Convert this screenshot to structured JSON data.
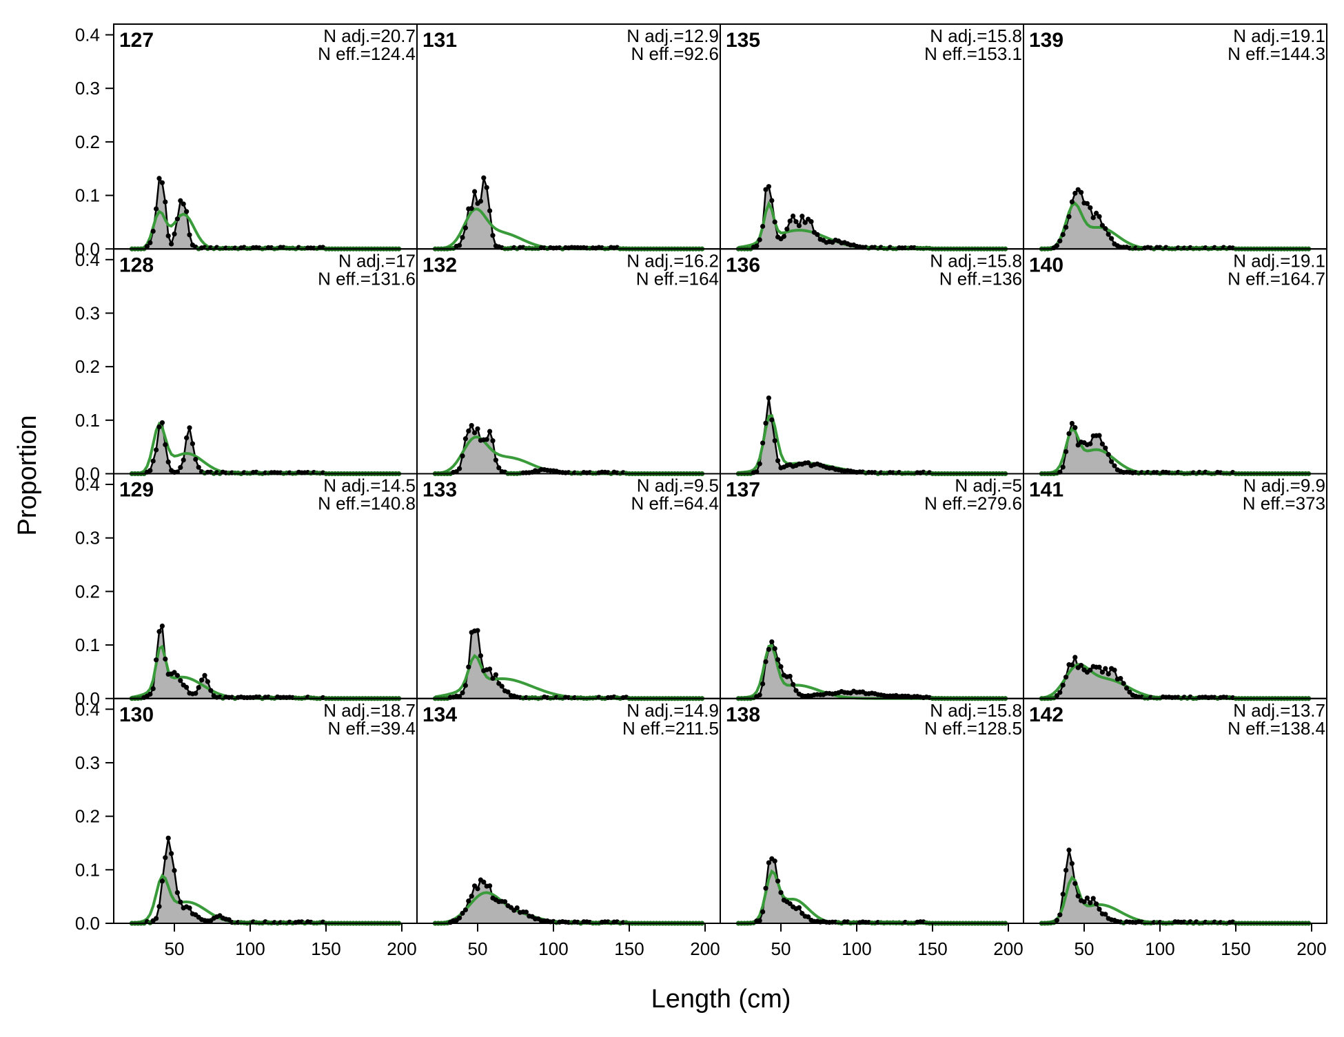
{
  "chart_data": {
    "type": "area",
    "xlabel": "Length (cm)",
    "ylabel": "Proportion",
    "xlim": [
      10,
      210
    ],
    "ylim": [
      0,
      0.42
    ],
    "x_ticks": [
      50,
      100,
      150,
      200
    ],
    "y_ticks": [
      0.0,
      0.1,
      0.2,
      0.3,
      0.4
    ],
    "x_tick_labels": [
      "50",
      "100",
      "150",
      "200"
    ],
    "y_tick_labels": [
      "0.0",
      "0.1",
      "0.2",
      "0.3",
      "0.4"
    ],
    "layout": {
      "rows": 4,
      "cols": 4,
      "order": "column-major"
    },
    "colors": {
      "observed_fill": "#b3b3b3",
      "observed_line": "#000000",
      "expected_line": "#3a9b3a",
      "zero_line": "#b0b0b0"
    },
    "series_roles": [
      "observed",
      "expected"
    ],
    "length_bins": [
      22,
      24,
      26,
      28,
      30,
      32,
      34,
      36,
      38,
      40,
      42,
      44,
      46,
      48,
      50,
      52,
      54,
      56,
      58,
      60,
      62,
      64,
      66,
      68,
      70,
      72,
      74,
      76,
      78,
      80,
      82,
      84,
      86,
      88,
      90,
      92,
      94,
      96,
      98,
      100,
      102,
      104,
      106,
      108,
      110,
      112,
      114,
      116,
      118,
      120,
      122,
      124,
      126,
      128,
      130,
      132,
      134,
      136,
      138,
      140,
      142,
      144,
      146,
      148,
      150,
      152,
      154,
      156,
      158,
      160,
      162,
      164,
      166,
      168,
      170,
      172,
      174,
      176,
      178,
      180,
      182,
      184,
      186,
      188,
      190,
      192,
      194,
      196,
      198
    ],
    "panels": [
      {
        "id": "127",
        "n_adj": "N adj.=20.7",
        "n_eff": "N eff.=124.4",
        "obs_peaks": [
          [
            40,
            0.078,
            3
          ],
          [
            42,
            0.087,
            2
          ],
          [
            55,
            0.098,
            3
          ]
        ],
        "exp_peaks": [
          [
            40,
            0.065,
            4
          ],
          [
            56,
            0.065,
            7
          ]
        ]
      },
      {
        "id": "128",
        "n_adj": "N adj.=17",
        "n_eff": "N eff.=131.6",
        "obs_peaks": [
          [
            41,
            0.087,
            3
          ],
          [
            60,
            0.075,
            3
          ]
        ],
        "exp_peaks": [
          [
            40,
            0.083,
            4
          ],
          [
            58,
            0.038,
            11
          ]
        ]
      },
      {
        "id": "129",
        "n_adj": "N adj.=14.5",
        "n_eff": "N eff.=140.8",
        "obs_peaks": [
          [
            41,
            0.138,
            2
          ],
          [
            48,
            0.05,
            7
          ],
          [
            70,
            0.038,
            3
          ]
        ],
        "exp_peaks": [
          [
            41,
            0.075,
            3
          ],
          [
            55,
            0.04,
            14
          ]
        ]
      },
      {
        "id": "130",
        "n_adj": "N adj.=18.7",
        "n_eff": "N eff.=39.4",
        "obs_peaks": [
          [
            46,
            0.163,
            3
          ],
          [
            55,
            0.03,
            8
          ],
          [
            80,
            0.012,
            4
          ]
        ],
        "exp_peaks": [
          [
            42,
            0.07,
            4
          ],
          [
            58,
            0.04,
            13
          ]
        ]
      },
      {
        "id": "131",
        "n_adj": "N adj.=12.9",
        "n_eff": "N eff.=92.6",
        "obs_peaks": [
          [
            47,
            0.09,
            4
          ],
          [
            55,
            0.1,
            3
          ]
        ],
        "exp_peaks": [
          [
            48,
            0.06,
            7
          ],
          [
            65,
            0.03,
            14
          ]
        ]
      },
      {
        "id": "132",
        "n_adj": "N adj.=16.2",
        "n_eff": "N eff.=164",
        "obs_peaks": [
          [
            44,
            0.07,
            3
          ],
          [
            50,
            0.065,
            3
          ],
          [
            58,
            0.07,
            3
          ],
          [
            95,
            0.008,
            5
          ]
        ],
        "exp_peaks": [
          [
            48,
            0.058,
            8
          ],
          [
            70,
            0.03,
            15
          ]
        ]
      },
      {
        "id": "133",
        "n_adj": "N adj.=9.5",
        "n_eff": "N eff.=64.4",
        "obs_peaks": [
          [
            48,
            0.11,
            3
          ],
          [
            56,
            0.05,
            8
          ]
        ],
        "exp_peaks": [
          [
            48,
            0.055,
            4
          ],
          [
            66,
            0.037,
            20
          ]
        ]
      },
      {
        "id": "134",
        "n_adj": "N adj.=14.9",
        "n_eff": "N eff.=211.5",
        "obs_peaks": [
          [
            52,
            0.065,
            7
          ],
          [
            70,
            0.03,
            12
          ]
        ],
        "exp_peaks": [
          [
            54,
            0.047,
            10
          ],
          [
            72,
            0.02,
            15
          ]
        ]
      },
      {
        "id": "135",
        "n_adj": "N adj.=15.8",
        "n_eff": "N eff.=153.1",
        "obs_peaks": [
          [
            42,
            0.12,
            3
          ],
          [
            58,
            0.05,
            5
          ],
          [
            68,
            0.045,
            4
          ],
          [
            85,
            0.015,
            10
          ]
        ],
        "exp_peaks": [
          [
            42,
            0.065,
            3
          ],
          [
            62,
            0.035,
            18
          ]
        ]
      },
      {
        "id": "136",
        "n_adj": "N adj.=15.8",
        "n_eff": "N eff.=136",
        "obs_peaks": [
          [
            42,
            0.135,
            3
          ],
          [
            60,
            0.015,
            10
          ],
          [
            78,
            0.012,
            10
          ]
        ],
        "exp_peaks": [
          [
            43,
            0.1,
            4
          ],
          [
            65,
            0.02,
            20
          ]
        ]
      },
      {
        "id": "137",
        "n_adj": "N adj.=5",
        "n_eff": "N eff.=279.6",
        "obs_peaks": [
          [
            43,
            0.11,
            3
          ],
          [
            52,
            0.05,
            5
          ],
          [
            95,
            0.012,
            20
          ]
        ],
        "exp_peaks": [
          [
            43,
            0.088,
            4
          ],
          [
            60,
            0.025,
            15
          ]
        ]
      },
      {
        "id": "138",
        "n_adj": "N adj.=15.8",
        "n_eff": "N eff.=128.5",
        "obs_peaks": [
          [
            44,
            0.125,
            3
          ],
          [
            55,
            0.04,
            8
          ]
        ],
        "exp_peaks": [
          [
            44,
            0.08,
            4
          ],
          [
            58,
            0.045,
            10
          ]
        ]
      },
      {
        "id": "139",
        "n_adj": "N adj.=19.1",
        "n_eff": "N eff.=144.3",
        "obs_peaks": [
          [
            44,
            0.095,
            5
          ],
          [
            57,
            0.06,
            7
          ]
        ],
        "exp_peaks": [
          [
            43,
            0.07,
            5
          ],
          [
            60,
            0.04,
            12
          ]
        ]
      },
      {
        "id": "140",
        "n_adj": "N adj.=19.1",
        "n_eff": "N eff.=164.7",
        "obs_peaks": [
          [
            42,
            0.09,
            3
          ],
          [
            52,
            0.055,
            5
          ],
          [
            62,
            0.05,
            5
          ]
        ],
        "exp_peaks": [
          [
            42,
            0.065,
            4
          ],
          [
            58,
            0.045,
            12
          ]
        ]
      },
      {
        "id": "141",
        "n_adj": "N adj.=9.9",
        "n_eff": "N eff.=373",
        "obs_peaks": [
          [
            42,
            0.06,
            4
          ],
          [
            55,
            0.055,
            8
          ],
          [
            70,
            0.04,
            6
          ]
        ],
        "exp_peaks": [
          [
            45,
            0.05,
            8
          ],
          [
            65,
            0.035,
            14
          ]
        ]
      },
      {
        "id": "142",
        "n_adj": "N adj.=13.7",
        "n_eff": "N eff.=138.4",
        "obs_peaks": [
          [
            40,
            0.105,
            3
          ],
          [
            52,
            0.045,
            8
          ]
        ],
        "exp_peaks": [
          [
            42,
            0.07,
            4
          ],
          [
            60,
            0.035,
            14
          ]
        ]
      }
    ]
  }
}
